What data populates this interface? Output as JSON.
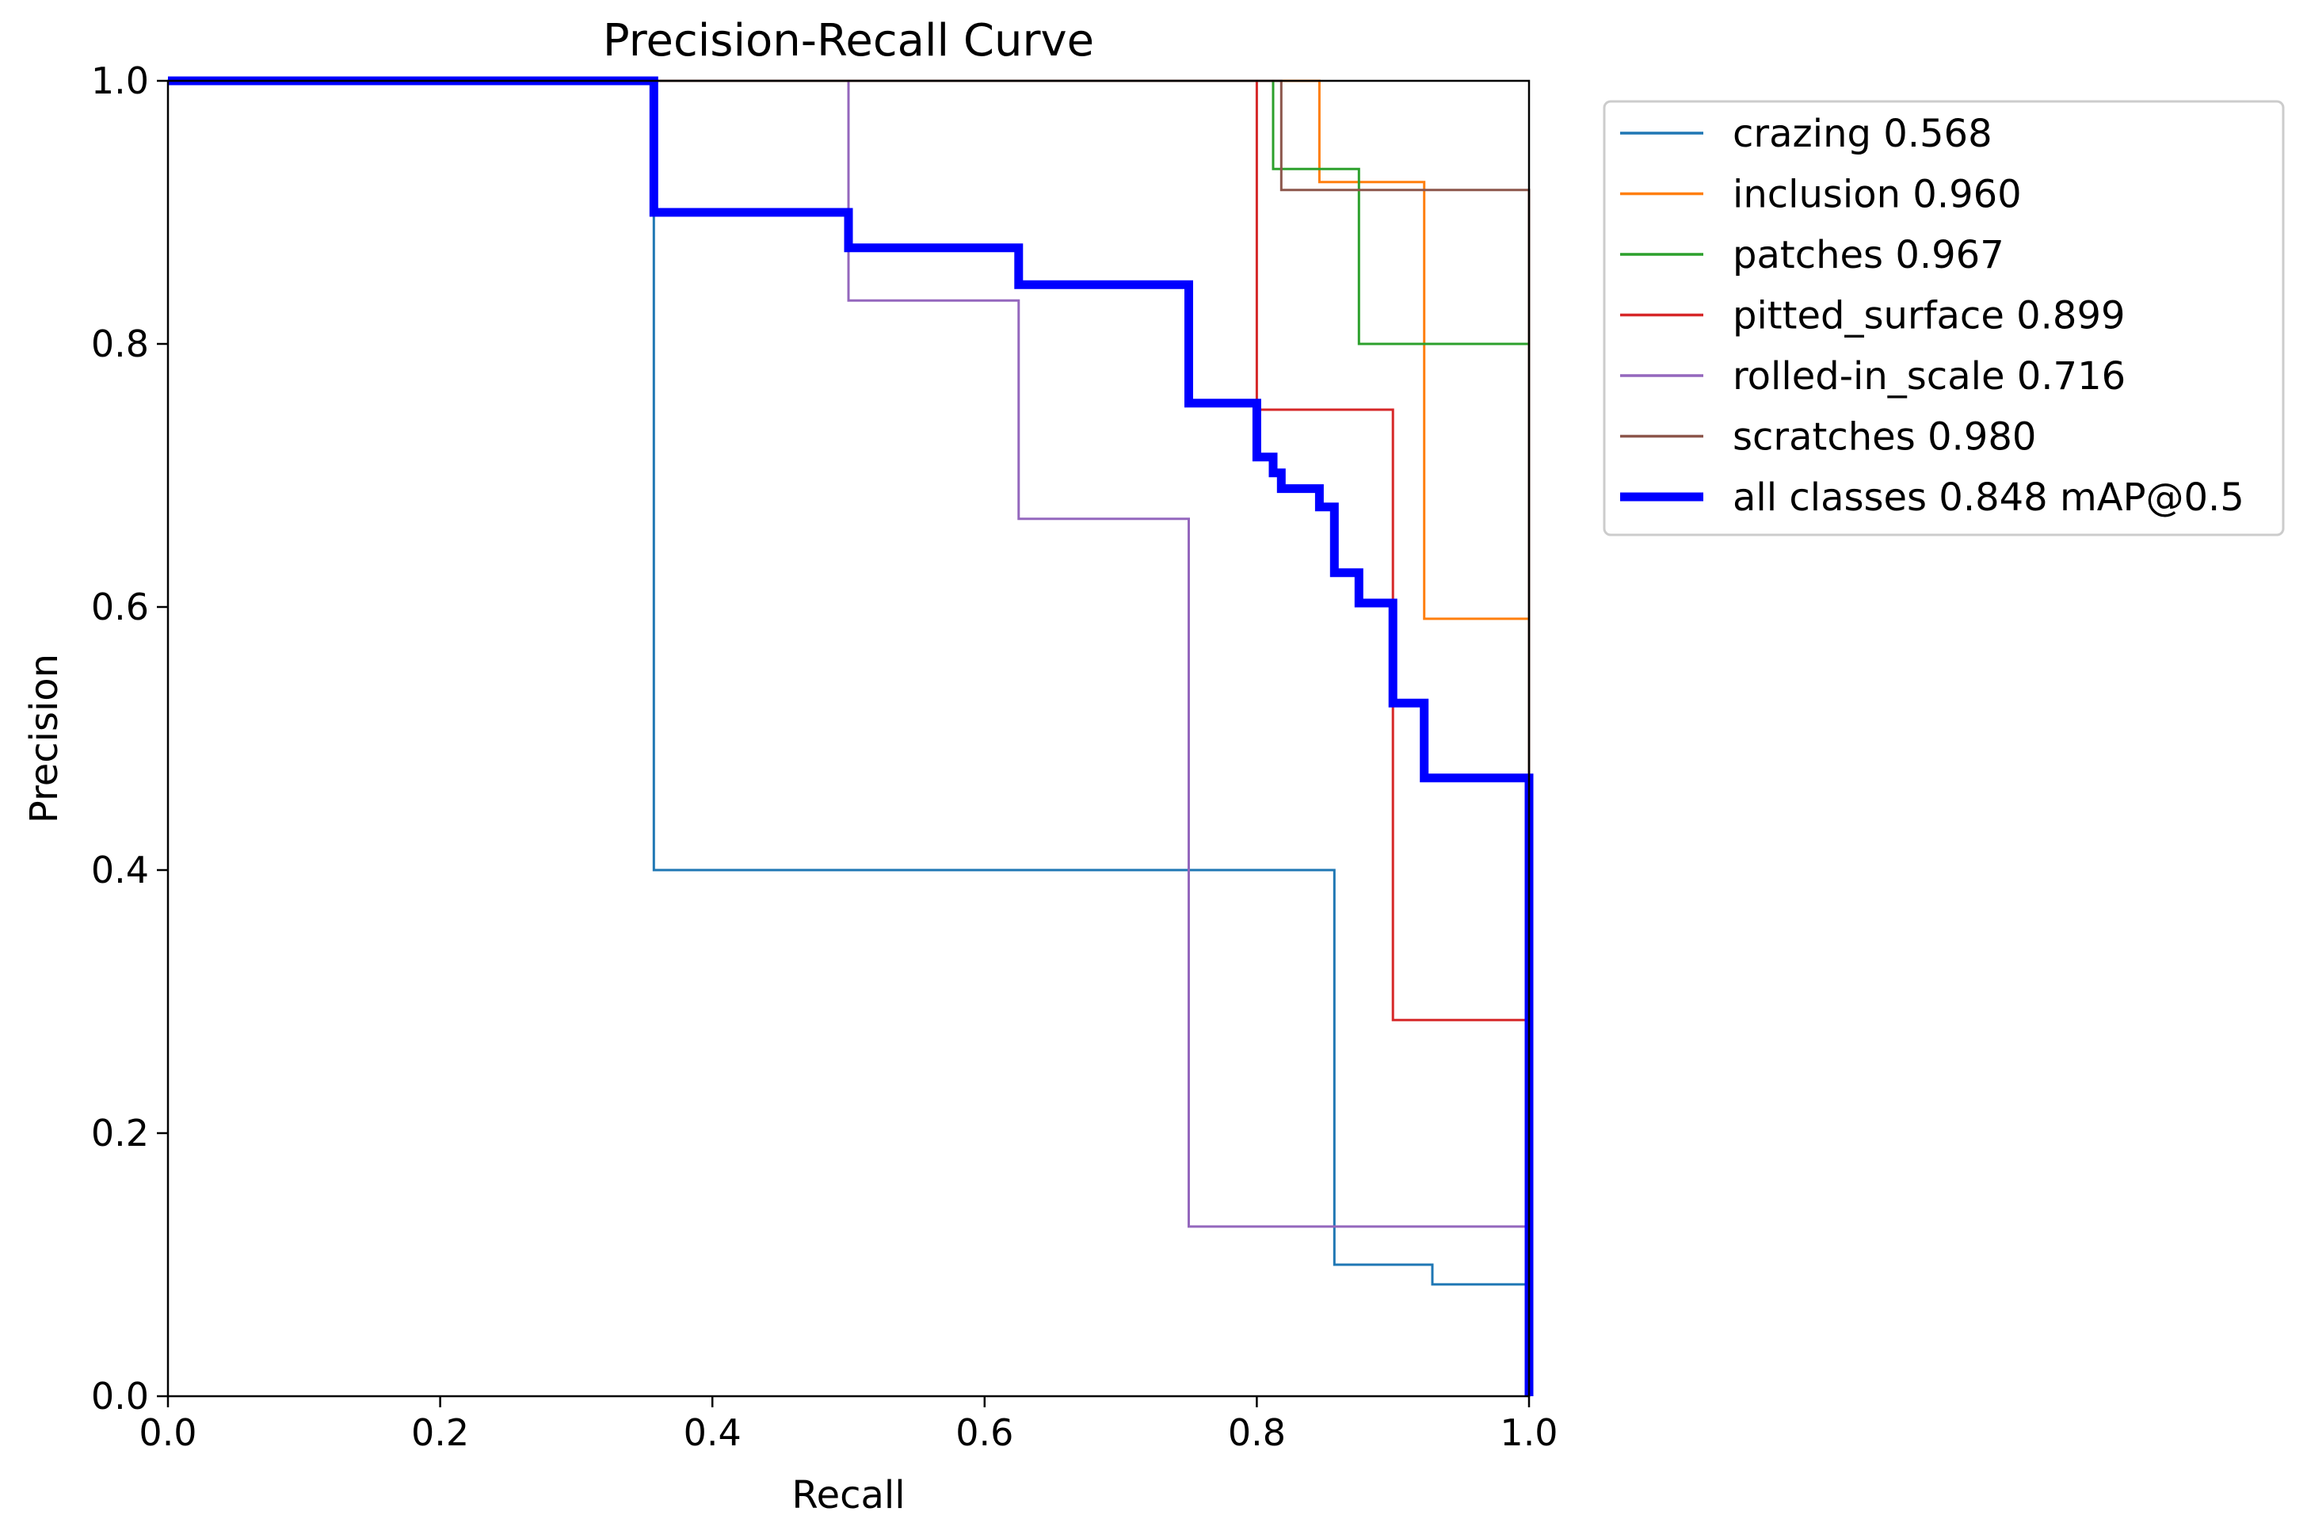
{
  "chart_data": {
    "type": "line",
    "title": "Precision-Recall Curve",
    "xlabel": "Recall",
    "ylabel": "Precision",
    "xlim": [
      0,
      1
    ],
    "ylim": [
      0,
      1
    ],
    "xticks": [
      "0.0",
      "0.2",
      "0.4",
      "0.6",
      "0.8",
      "1.0"
    ],
    "yticks": [
      "0.0",
      "0.2",
      "0.4",
      "0.6",
      "0.8",
      "1.0"
    ],
    "grid": false,
    "legend_position": "outside-top-right",
    "series": [
      {
        "name": "crazing",
        "label": "crazing 0.568",
        "color": "#1f77b4",
        "width": 3,
        "points": [
          [
            0,
            1
          ],
          [
            0.357,
            1
          ],
          [
            0.357,
            0.4
          ],
          [
            0.857,
            0.4
          ],
          [
            0.857,
            0.1
          ],
          [
            0.929,
            0.1
          ],
          [
            0.929,
            0.085
          ],
          [
            1.0,
            0.085
          ],
          [
            1.0,
            0
          ]
        ]
      },
      {
        "name": "inclusion",
        "label": "inclusion 0.960",
        "color": "#ff7f0e",
        "width": 3,
        "points": [
          [
            0,
            1
          ],
          [
            0.846,
            1
          ],
          [
            0.846,
            0.923
          ],
          [
            0.923,
            0.923
          ],
          [
            0.923,
            0.591
          ],
          [
            1.0,
            0.591
          ],
          [
            1.0,
            0
          ]
        ]
      },
      {
        "name": "patches",
        "label": "patches 0.967",
        "color": "#2ca02c",
        "width": 3,
        "points": [
          [
            0,
            1
          ],
          [
            0.812,
            1
          ],
          [
            0.812,
            0.933
          ],
          [
            0.875,
            0.933
          ],
          [
            0.875,
            0.8
          ],
          [
            1.0,
            0.8
          ],
          [
            1.0,
            0
          ]
        ]
      },
      {
        "name": "pitted_surface",
        "label": "pitted_surface 0.899",
        "color": "#d62728",
        "width": 3,
        "points": [
          [
            0,
            1
          ],
          [
            0.8,
            1
          ],
          [
            0.8,
            0.75
          ],
          [
            0.9,
            0.75
          ],
          [
            0.9,
            0.286
          ],
          [
            1.0,
            0.286
          ],
          [
            1.0,
            0
          ]
        ]
      },
      {
        "name": "rolled-in_scale",
        "label": "rolled-in_scale 0.716",
        "color": "#9467bd",
        "width": 3,
        "points": [
          [
            0,
            1
          ],
          [
            0.5,
            1
          ],
          [
            0.5,
            0.833
          ],
          [
            0.625,
            0.833
          ],
          [
            0.625,
            0.667
          ],
          [
            0.75,
            0.667
          ],
          [
            0.75,
            0.129
          ],
          [
            1.0,
            0.129
          ],
          [
            1.0,
            0
          ]
        ]
      },
      {
        "name": "scratches",
        "label": "scratches 0.980",
        "color": "#8c564b",
        "width": 3,
        "points": [
          [
            0,
            1
          ],
          [
            0.818,
            1
          ],
          [
            0.818,
            0.917
          ],
          [
            1.0,
            0.917
          ],
          [
            1.0,
            0
          ]
        ]
      },
      {
        "name": "all classes",
        "label": "all classes 0.848 mAP@0.5",
        "color": "#0000ff",
        "width": 11,
        "points": [
          [
            0,
            1
          ],
          [
            0.357,
            1
          ],
          [
            0.357,
            0.9
          ],
          [
            0.5,
            0.9
          ],
          [
            0.5,
            0.873
          ],
          [
            0.625,
            0.873
          ],
          [
            0.625,
            0.845
          ],
          [
            0.75,
            0.845
          ],
          [
            0.75,
            0.755
          ],
          [
            0.8,
            0.755
          ],
          [
            0.8,
            0.714
          ],
          [
            0.812,
            0.714
          ],
          [
            0.812,
            0.702
          ],
          [
            0.818,
            0.702
          ],
          [
            0.818,
            0.69
          ],
          [
            0.846,
            0.69
          ],
          [
            0.846,
            0.676
          ],
          [
            0.857,
            0.676
          ],
          [
            0.857,
            0.626
          ],
          [
            0.875,
            0.626
          ],
          [
            0.875,
            0.603
          ],
          [
            0.9,
            0.603
          ],
          [
            0.9,
            0.527
          ],
          [
            0.923,
            0.527
          ],
          [
            0.923,
            0.47
          ],
          [
            1.0,
            0.47
          ],
          [
            1.0,
            0
          ]
        ]
      }
    ]
  }
}
